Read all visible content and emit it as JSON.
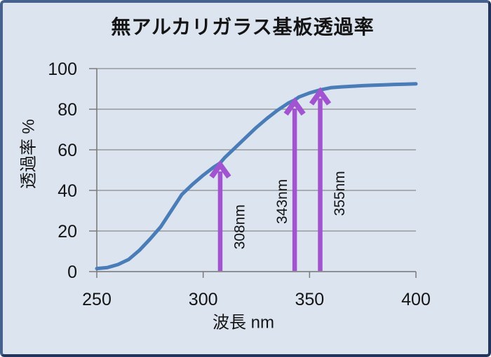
{
  "chart": {
    "title": "無アルカリガラス基板透過率",
    "xlabel": "波長 nm",
    "ylabel": "透過率 %"
  },
  "colors": {
    "background": "#dce4f0",
    "frame_border_light": "#46618d",
    "frame_border_dark": "#22365c",
    "grid": "#898989",
    "axis": "#7b7b7b",
    "curve": "#4a7db8",
    "arrow": "#a153d0",
    "text": "#141414"
  },
  "chart_data": {
    "type": "line",
    "title": "無アルカリガラス基板透過率",
    "xlabel": "波長 nm",
    "ylabel": "透過率 %",
    "xlim": [
      250,
      400
    ],
    "ylim": [
      0,
      100
    ],
    "xticks": [
      "250",
      "300",
      "350",
      "400"
    ],
    "xtick_values": [
      250,
      300,
      350,
      400
    ],
    "yticks": [
      "0",
      "20",
      "40",
      "60",
      "80",
      "100"
    ],
    "ytick_values": [
      0,
      20,
      40,
      60,
      80,
      100
    ],
    "grid": "horizontal",
    "legend": "none",
    "series": [
      {
        "name": "透過率",
        "points": [
          [
            250,
            1.5
          ],
          [
            255,
            2
          ],
          [
            260,
            3.5
          ],
          [
            265,
            6
          ],
          [
            270,
            10.5
          ],
          [
            275,
            16
          ],
          [
            280,
            22
          ],
          [
            285,
            30
          ],
          [
            290,
            38
          ],
          [
            295,
            43
          ],
          [
            300,
            47.5
          ],
          [
            305,
            51.5
          ],
          [
            308,
            53.5
          ],
          [
            310,
            56
          ],
          [
            315,
            61
          ],
          [
            320,
            66
          ],
          [
            325,
            71
          ],
          [
            330,
            75.5
          ],
          [
            335,
            79.5
          ],
          [
            340,
            83
          ],
          [
            343,
            84.5
          ],
          [
            345,
            86
          ],
          [
            350,
            88
          ],
          [
            355,
            89.5
          ],
          [
            360,
            90.6
          ],
          [
            365,
            91
          ],
          [
            370,
            91.3
          ],
          [
            375,
            91.6
          ],
          [
            380,
            91.8
          ],
          [
            385,
            92
          ],
          [
            390,
            92.2
          ],
          [
            395,
            92.3
          ],
          [
            400,
            92.5
          ]
        ]
      }
    ],
    "annotations": [
      {
        "label": "308nm",
        "x_nm": 308,
        "tip_pct": 53.5,
        "label_x_nm": 317.5,
        "label_y_pct": 22
      },
      {
        "label": "343nm",
        "x_nm": 343,
        "tip_pct": 84.5,
        "label_x_nm": 337.5,
        "label_y_pct": 34.5
      },
      {
        "label": "355nm",
        "x_nm": 355,
        "tip_pct": 89.5,
        "label_x_nm": 364.5,
        "label_y_pct": 38.5
      }
    ]
  }
}
